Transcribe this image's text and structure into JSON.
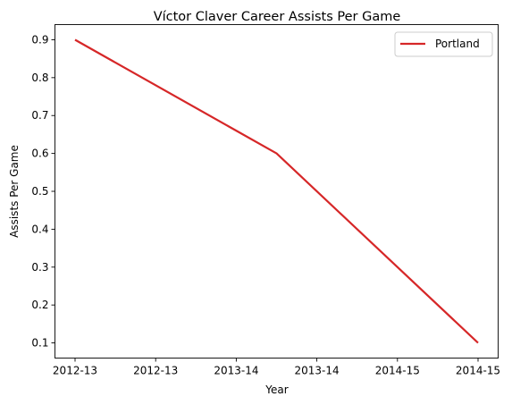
{
  "chart_data": {
    "type": "line",
    "title": "Víctor Claver Career Assists Per Game",
    "xlabel": "Year",
    "ylabel": "Assists Per Game",
    "x_tick_labels": [
      "2012-13",
      "2012-13",
      "2013-14",
      "2013-14",
      "2014-15",
      "2014-15"
    ],
    "y_ticks": [
      "0.1",
      "0.2",
      "0.3",
      "0.4",
      "0.5",
      "0.6",
      "0.7",
      "0.8",
      "0.9"
    ],
    "ylim": [
      0.06,
      0.94
    ],
    "grid": false,
    "legend_position": "top-right",
    "series": [
      {
        "name": "Portland",
        "color": "#d62728",
        "x": [
          "2012-13",
          "2013-14",
          "2014-15"
        ],
        "values": [
          0.9,
          0.6,
          0.1
        ]
      }
    ]
  }
}
